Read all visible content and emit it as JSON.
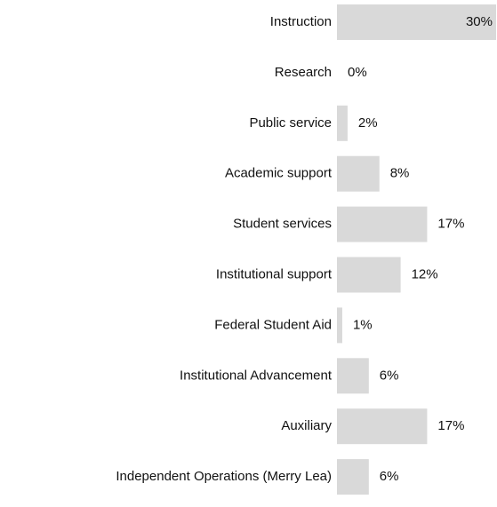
{
  "chart_data": {
    "type": "bar",
    "orientation": "horizontal",
    "categories": [
      "Instruction",
      "Research",
      "Public service",
      "Academic support",
      "Student services",
      "Institutional support",
      "Federal Student Aid",
      "Institutional Advancement",
      "Auxiliary",
      "Independent Operations (Merry Lea)"
    ],
    "values": [
      30,
      0,
      2,
      8,
      17,
      12,
      1,
      6,
      17,
      6
    ],
    "value_labels": [
      "30%",
      "0%",
      "2%",
      "8%",
      "17%",
      "12%",
      "1%",
      "6%",
      "17%",
      "6%"
    ],
    "color": "#d9d9d9"
  }
}
